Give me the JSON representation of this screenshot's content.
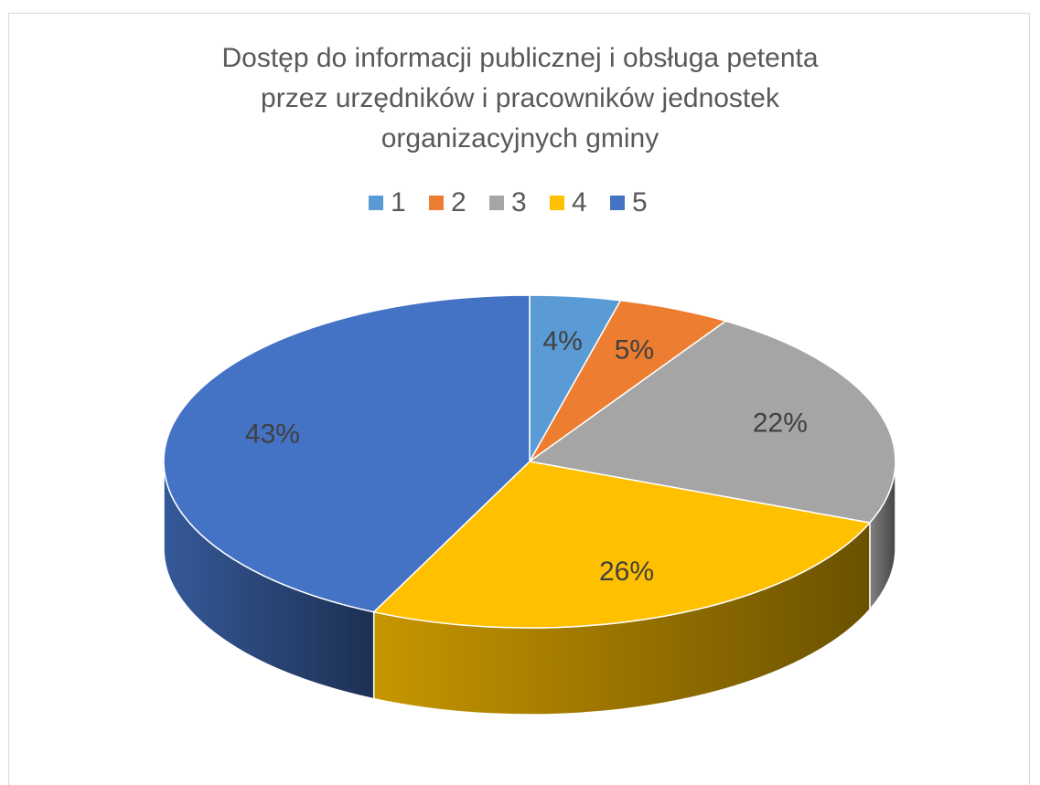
{
  "chart_data": {
    "type": "pie",
    "title": "Dostęp do informacji publicznej i obsługa petenta przez urzędników i pracowników jednostek organizacyjnych gminy",
    "categories": [
      "1",
      "2",
      "3",
      "4",
      "5"
    ],
    "values": [
      4,
      5,
      22,
      26,
      43
    ],
    "value_labels": [
      "4%",
      "5%",
      "22%",
      "26%",
      "43%"
    ],
    "colors": [
      "#5b9bd5",
      "#ed7d31",
      "#a5a5a5",
      "#ffc000",
      "#4472c4"
    ],
    "legend": "top"
  }
}
